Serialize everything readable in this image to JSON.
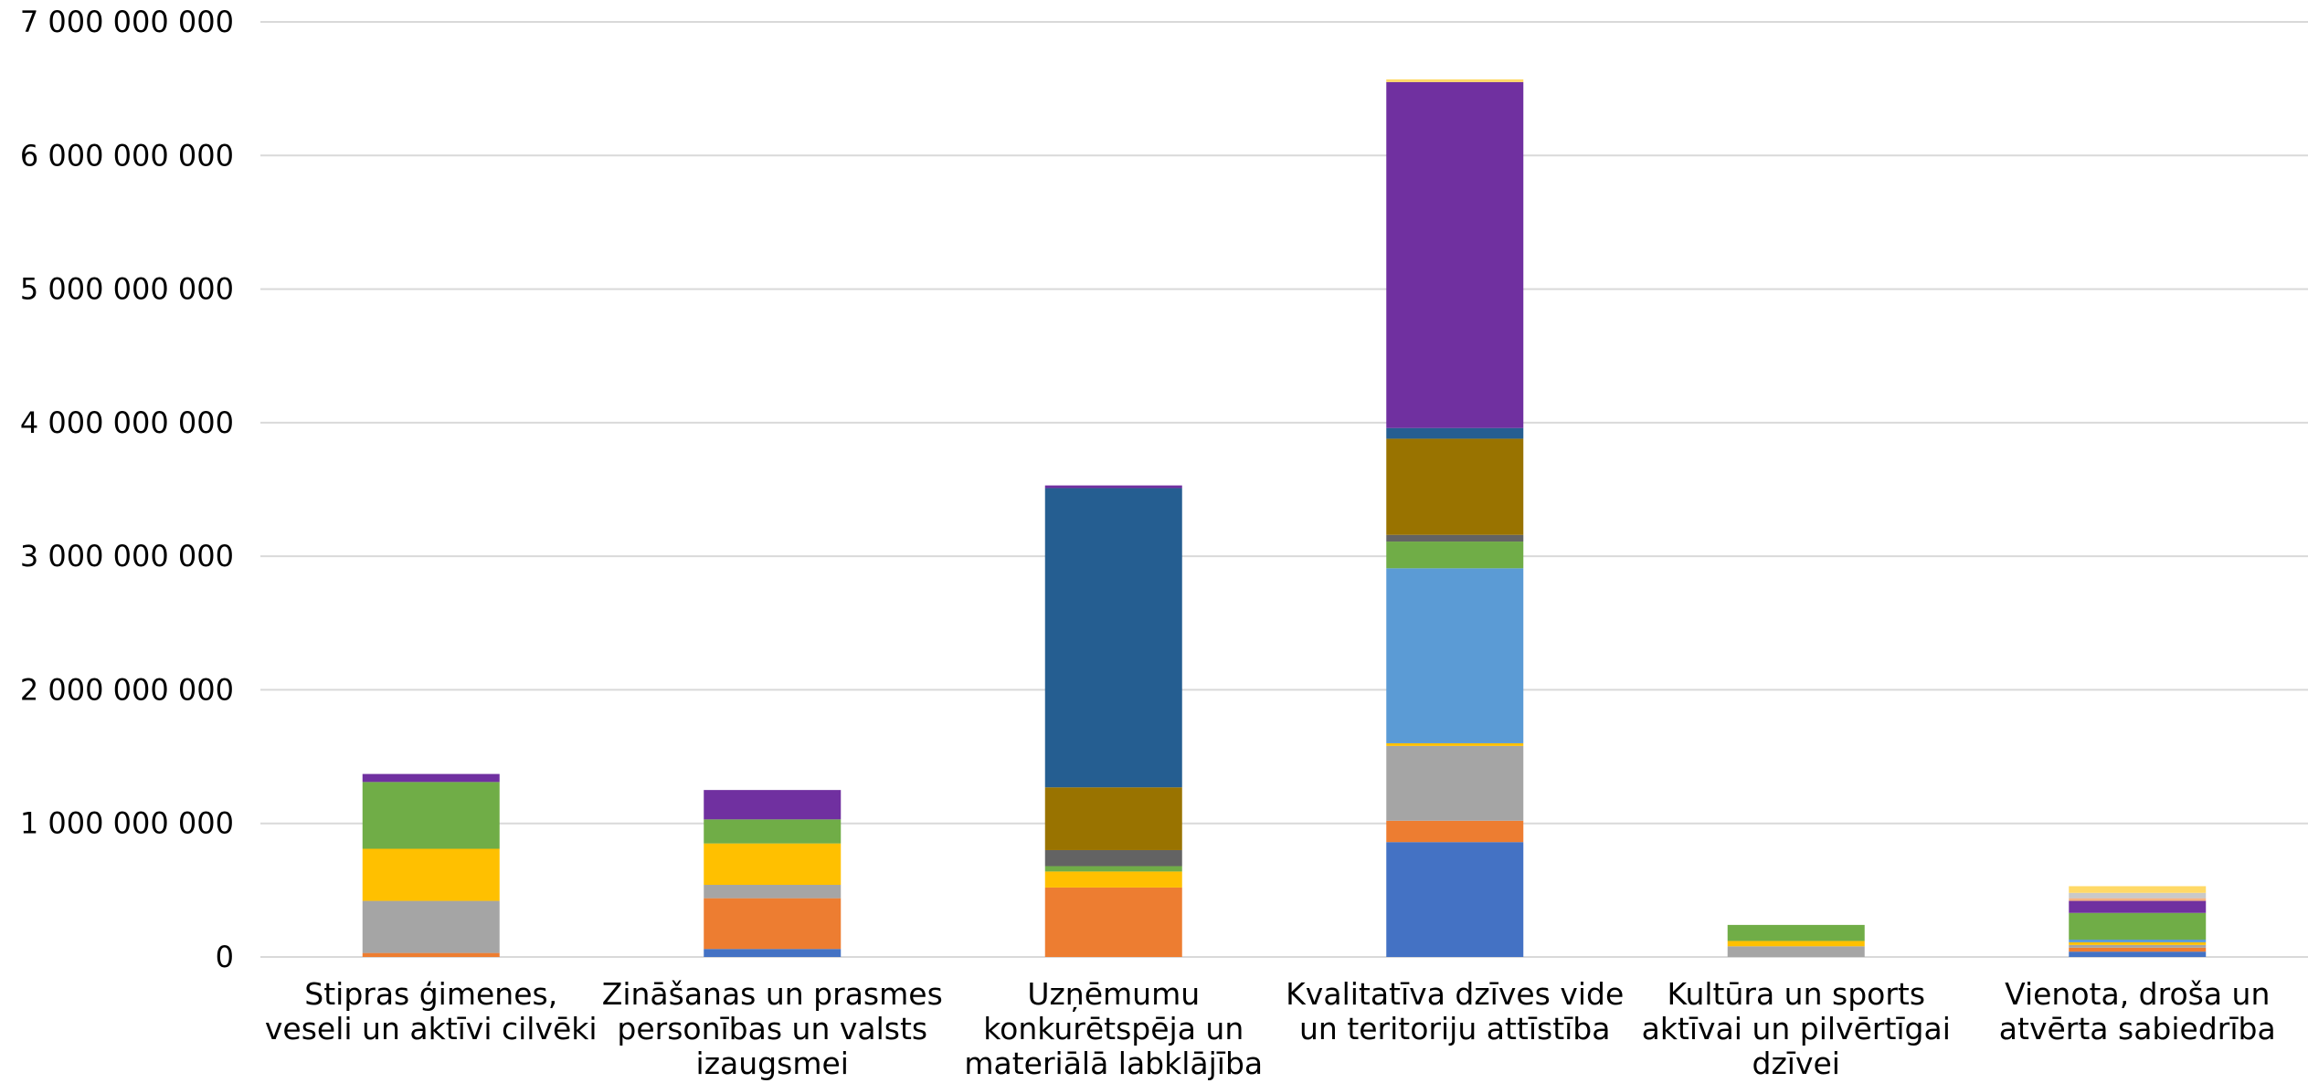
{
  "chart_data": {
    "type": "bar",
    "stacked": true,
    "grid": true,
    "legend": "none",
    "ylim": [
      0,
      7000000000
    ],
    "y_ticks": [
      {
        "value": 0,
        "label": "0"
      },
      {
        "value": 1000000000,
        "label": "1 000 000 000"
      },
      {
        "value": 2000000000,
        "label": "2 000 000 000"
      },
      {
        "value": 3000000000,
        "label": "3 000 000 000"
      },
      {
        "value": 4000000000,
        "label": "4 000 000 000"
      },
      {
        "value": 5000000000,
        "label": "5 000 000 000"
      },
      {
        "value": 6000000000,
        "label": "6 000 000 000"
      },
      {
        "value": 7000000000,
        "label": "7 000 000 000"
      }
    ],
    "categories": [
      {
        "lines": [
          "Stipras ģimenes,",
          "veseli un aktīvi cilvēki"
        ]
      },
      {
        "lines": [
          "Zināšanas un prasmes",
          "personības un valsts",
          "izaugsmei"
        ]
      },
      {
        "lines": [
          "Uzņēmumu",
          "konkurētspēja un",
          "materiālā labklājība"
        ]
      },
      {
        "lines": [
          "Kvalitatīva dzīves vide",
          "un teritoriju attīstība"
        ]
      },
      {
        "lines": [
          "Kultūra un sports",
          "aktīvai un pilvērtīgai",
          "dzīvei"
        ]
      },
      {
        "lines": [
          "Vienota, droša un",
          "atvērta sabiedrība"
        ]
      }
    ],
    "series": [
      {
        "color": "#4472c4",
        "values": [
          0,
          60000000,
          0,
          860000000,
          0,
          40000000
        ]
      },
      {
        "color": "#ed7d31",
        "values": [
          30000000,
          380000000,
          520000000,
          160000000,
          0,
          30000000
        ]
      },
      {
        "color": "#a5a5a5",
        "values": [
          390000000,
          100000000,
          0,
          560000000,
          80000000,
          20000000
        ]
      },
      {
        "color": "#ffc000",
        "values": [
          390000000,
          310000000,
          120000000,
          20000000,
          40000000,
          20000000
        ]
      },
      {
        "color": "#5b9bd5",
        "values": [
          0,
          0,
          0,
          1310000000,
          0,
          20000000
        ]
      },
      {
        "color": "#70ad47",
        "values": [
          500000000,
          180000000,
          40000000,
          200000000,
          120000000,
          200000000
        ]
      },
      {
        "color": "#636363",
        "values": [
          0,
          0,
          120000000,
          50000000,
          0,
          0
        ]
      },
      {
        "color": "#997300",
        "values": [
          0,
          0,
          470000000,
          720000000,
          0,
          0
        ]
      },
      {
        "color": "#255e91",
        "values": [
          0,
          0,
          2240000000,
          80000000,
          0,
          0
        ]
      },
      {
        "color": "#7030a0",
        "values": [
          60000000,
          220000000,
          20000000,
          2590000000,
          0,
          90000000
        ]
      },
      {
        "color": "#f4b183",
        "values": [
          0,
          0,
          0,
          0,
          0,
          20000000
        ]
      },
      {
        "color": "#c9c9c9",
        "values": [
          0,
          0,
          0,
          0,
          0,
          40000000
        ]
      },
      {
        "color": "#ffd966",
        "values": [
          0,
          0,
          0,
          20000000,
          0,
          50000000
        ]
      }
    ]
  }
}
